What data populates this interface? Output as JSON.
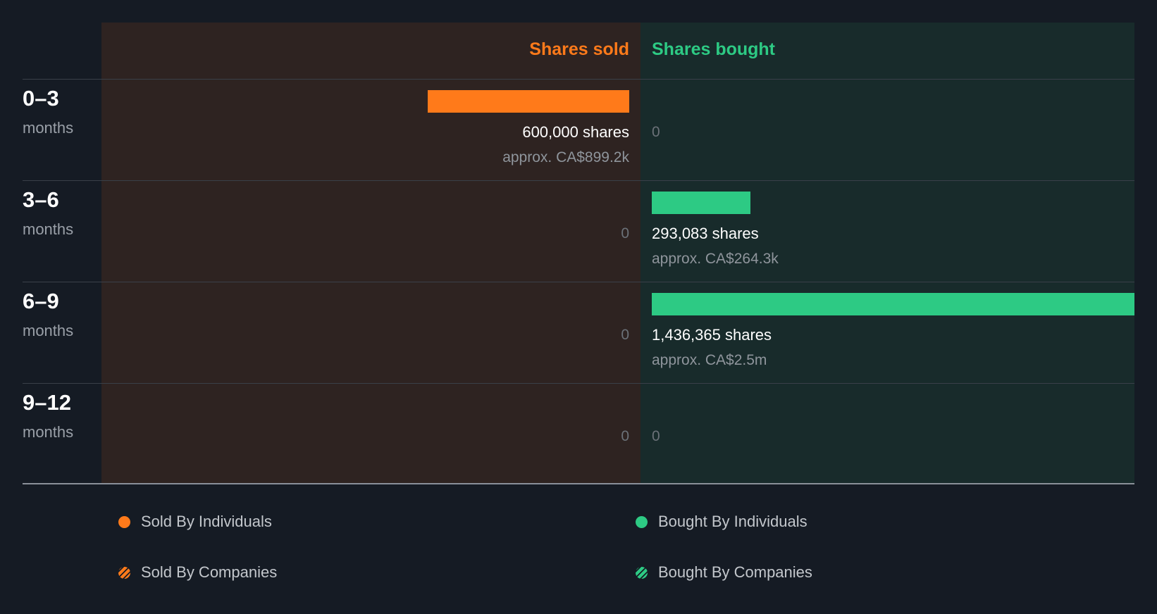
{
  "chart_data": {
    "type": "bar",
    "headers": {
      "sold": "Shares sold",
      "bought": "Shares bought"
    },
    "periods": [
      {
        "label": "0–3",
        "unit": "months",
        "sold": {
          "value": 600000,
          "shares_text": "600,000 shares",
          "approx_text": "approx. CA$899.2k"
        },
        "bought": {
          "value": 0,
          "zero_text": "0"
        }
      },
      {
        "label": "3–6",
        "unit": "months",
        "sold": {
          "value": 0,
          "zero_text": "0"
        },
        "bought": {
          "value": 293083,
          "shares_text": "293,083 shares",
          "approx_text": "approx. CA$264.3k"
        }
      },
      {
        "label": "6–9",
        "unit": "months",
        "sold": {
          "value": 0,
          "zero_text": "0"
        },
        "bought": {
          "value": 1436365,
          "shares_text": "1,436,365 shares",
          "approx_text": "approx. CA$2.5m"
        }
      },
      {
        "label": "9–12",
        "unit": "months",
        "sold": {
          "value": 0,
          "zero_text": "0"
        },
        "bought": {
          "value": 0,
          "zero_text": "0"
        }
      }
    ],
    "legend": [
      {
        "label": "Sold By Individuals",
        "color": "#ff7a1a",
        "style": "solid"
      },
      {
        "label": "Bought By Individuals",
        "color": "#2dca84",
        "style": "solid"
      },
      {
        "label": "Sold By Companies",
        "color": "#ff7a1a",
        "style": "striped"
      },
      {
        "label": "Bought By Companies",
        "color": "#2dca84",
        "style": "striped"
      }
    ],
    "colors": {
      "sold": "#ff7a1a",
      "bought": "#2dca84"
    },
    "max_value": 1436365
  }
}
